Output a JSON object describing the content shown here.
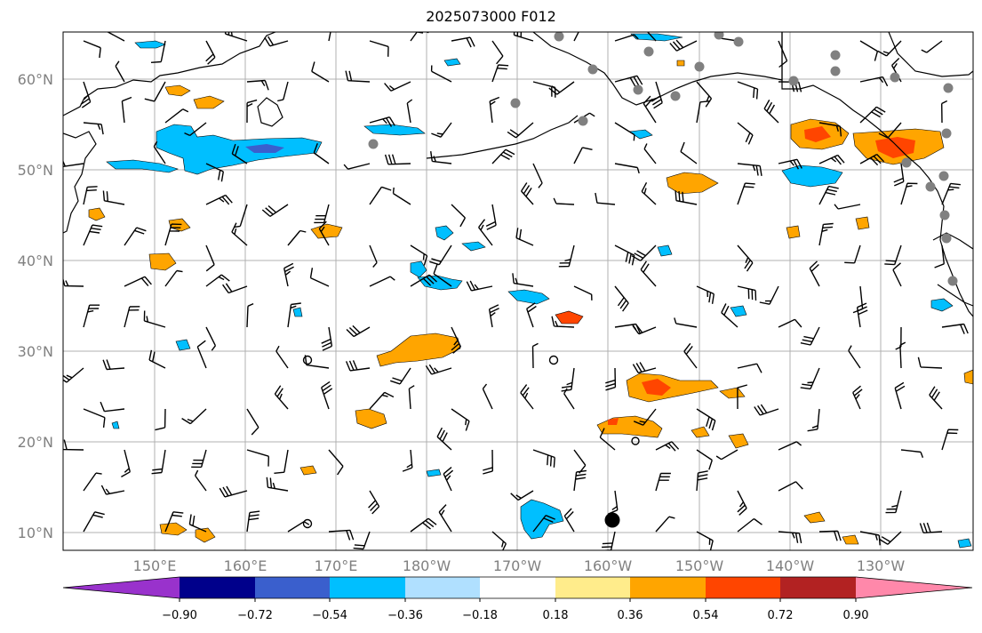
{
  "title": "2025073000 F012",
  "map": {
    "lat_labels": [
      "10°N",
      "20°N",
      "30°N",
      "40°N",
      "50°N",
      "60°N"
    ],
    "lon_labels": [
      "150°E",
      "160°E",
      "170°E",
      "180°W",
      "170°W",
      "160°W",
      "150°W",
      "140°W",
      "130°W"
    ]
  },
  "colorbar": {
    "labels": [
      "−0.90",
      "−0.72",
      "−0.54",
      "−0.36",
      "−0.18",
      "0.18",
      "0.36",
      "0.54",
      "0.72",
      "0.90"
    ],
    "colors": [
      "#9932cc",
      "#00008b",
      "#3a5fcd",
      "#00bfff",
      "#b0e0ff",
      "#ffffff",
      "#ffec8b",
      "#ffa500",
      "#ff4500",
      "#b22222",
      "#ff88aa"
    ]
  },
  "colors": {
    "land_outline": "#000000",
    "gridline": "#b0b0b0",
    "station_marker": "#808080",
    "orange_fill": "#ffa500",
    "blue_fill": "#00bfff",
    "red_fill": "#ff4500"
  }
}
